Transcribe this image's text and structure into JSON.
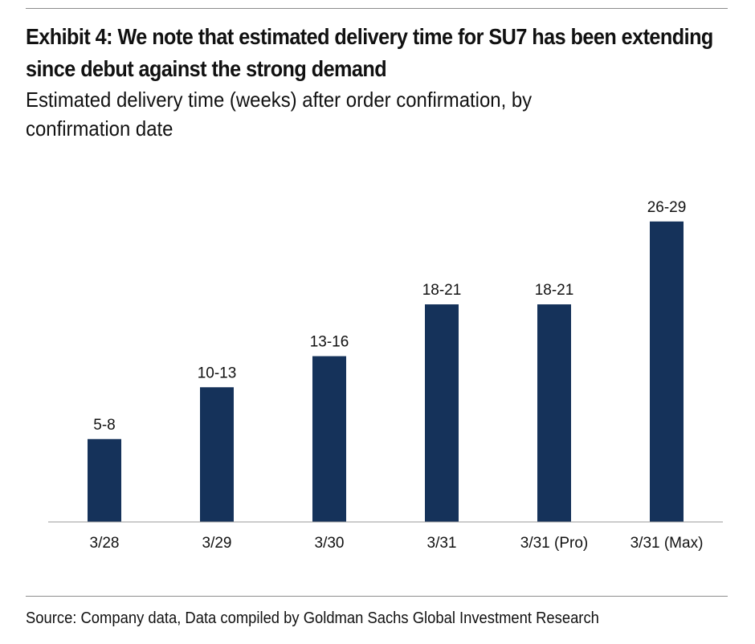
{
  "title": "Exhibit 4: We note that estimated delivery time for SU7 has been extending since debut against the strong demand",
  "subtitle": "Estimated delivery time (weeks) after order confirmation, by confirmation date",
  "source": "Source: Company data, Data compiled by Goldman Sachs Global Investment Research",
  "colors": {
    "bar": "#15325a",
    "axis": "#9a9a9a"
  },
  "chart_data": {
    "type": "bar",
    "categories": [
      "3/28",
      "3/29",
      "3/30",
      "3/31",
      "3/31 (Pro)",
      "3/31 (Max)"
    ],
    "values": [
      8,
      13,
      16,
      21,
      21,
      29
    ],
    "data_labels": [
      "5-8",
      "10-13",
      "13-16",
      "18-21",
      "18-21",
      "26-29"
    ],
    "xlabel": "",
    "ylabel": "",
    "ylim": [
      0,
      31
    ],
    "grid": false,
    "legend": "none"
  }
}
